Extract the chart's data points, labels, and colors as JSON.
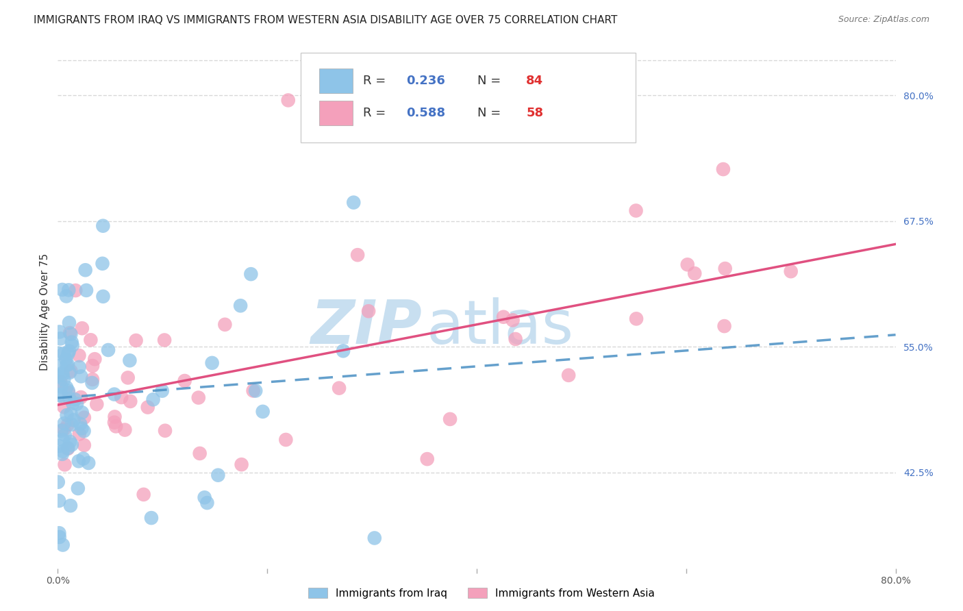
{
  "title": "IMMIGRANTS FROM IRAQ VS IMMIGRANTS FROM WESTERN ASIA DISABILITY AGE OVER 75 CORRELATION CHART",
  "source": "Source: ZipAtlas.com",
  "ylabel": "Disability Age Over 75",
  "legend_label_1": "Immigrants from Iraq",
  "legend_label_2": "Immigrants from Western Asia",
  "R1": 0.236,
  "N1": 84,
  "R2": 0.588,
  "N2": 58,
  "color1": "#8ec4e8",
  "color2": "#f4a0bb",
  "color1_line": "#4a90c4",
  "color2_line": "#e05080",
  "xmin": 0.0,
  "xmax": 0.8,
  "ymin": 0.33,
  "ymax": 0.84,
  "right_yticks": [
    0.425,
    0.55,
    0.675,
    0.8
  ],
  "right_ytick_labels": [
    "42.5%",
    "55.0%",
    "67.5%",
    "80.0%"
  ],
  "xtick_labels": [
    "0.0%",
    "",
    "",
    "",
    "80.0%"
  ],
  "xtick_vals": [
    0.0,
    0.2,
    0.4,
    0.6,
    0.8
  ],
  "watermark_zip": "ZIP",
  "watermark_atlas": "atlas",
  "watermark_color_zip": "#c8dff0",
  "watermark_color_atlas": "#c8dff0",
  "background_color": "#ffffff",
  "grid_color": "#d8d8d8",
  "title_fontsize": 11,
  "axis_label_fontsize": 11,
  "tick_fontsize": 10,
  "legend_fontsize": 13
}
